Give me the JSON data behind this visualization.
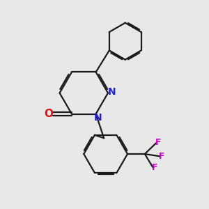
{
  "background_color": "#e8e8e8",
  "bond_color": "#1a1a1a",
  "nitrogen_color": "#2222cc",
  "oxygen_color": "#dd1111",
  "fluorine_color": "#cc00cc",
  "line_width": 1.6,
  "figsize": [
    3.0,
    3.0
  ],
  "dpi": 100,
  "xlim": [
    0.5,
    9.5
  ],
  "ylim": [
    0.5,
    9.5
  ]
}
